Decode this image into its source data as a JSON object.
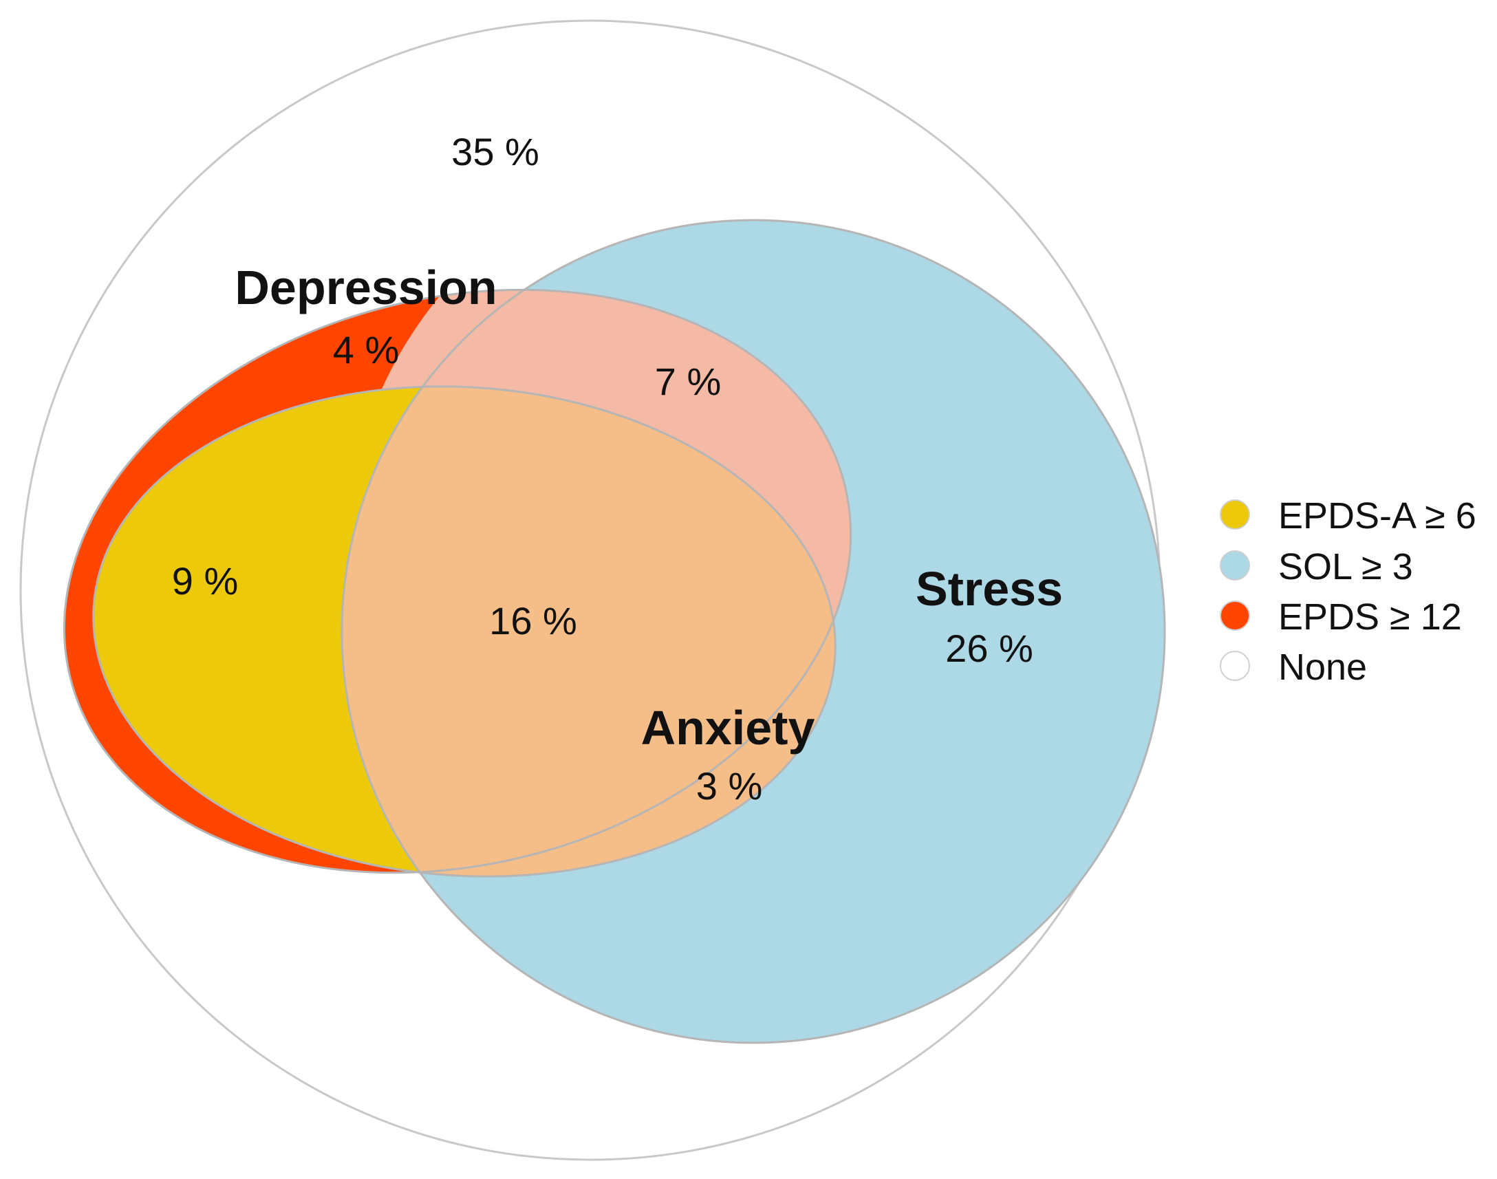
{
  "sets": {
    "depression": {
      "title": "Depression",
      "criterion": "EPDS ≥ 12",
      "color": "#FF4500"
    },
    "anxiety": {
      "title": "Anxiety",
      "criterion": "EPDS-A ≥ 6",
      "color": "#ECC90A"
    },
    "stress": {
      "title": "Stress",
      "criterion": "SOL ≥ 3",
      "color": "#ADD8E6"
    }
  },
  "regions": {
    "none": "35 %",
    "depression_only": "4 %",
    "depression_stress": "7 %",
    "depression_anxiety": "9 %",
    "all_three": "16 %",
    "stress_only": "26 %",
    "anxiety_only": "3 %"
  },
  "overlap_colors": {
    "depression_stress": "#F5BAA5",
    "all_three": "#F5BE88"
  },
  "legend": [
    {
      "label": "EPDS-A ≥ 6",
      "color": "#ECC90A"
    },
    {
      "label": "SOL ≥ 3",
      "color": "#ADD8E6"
    },
    {
      "label": "EPDS ≥ 12",
      "color": "#FF4500"
    },
    {
      "label": "None",
      "color": "#FFFFFF"
    }
  ]
}
